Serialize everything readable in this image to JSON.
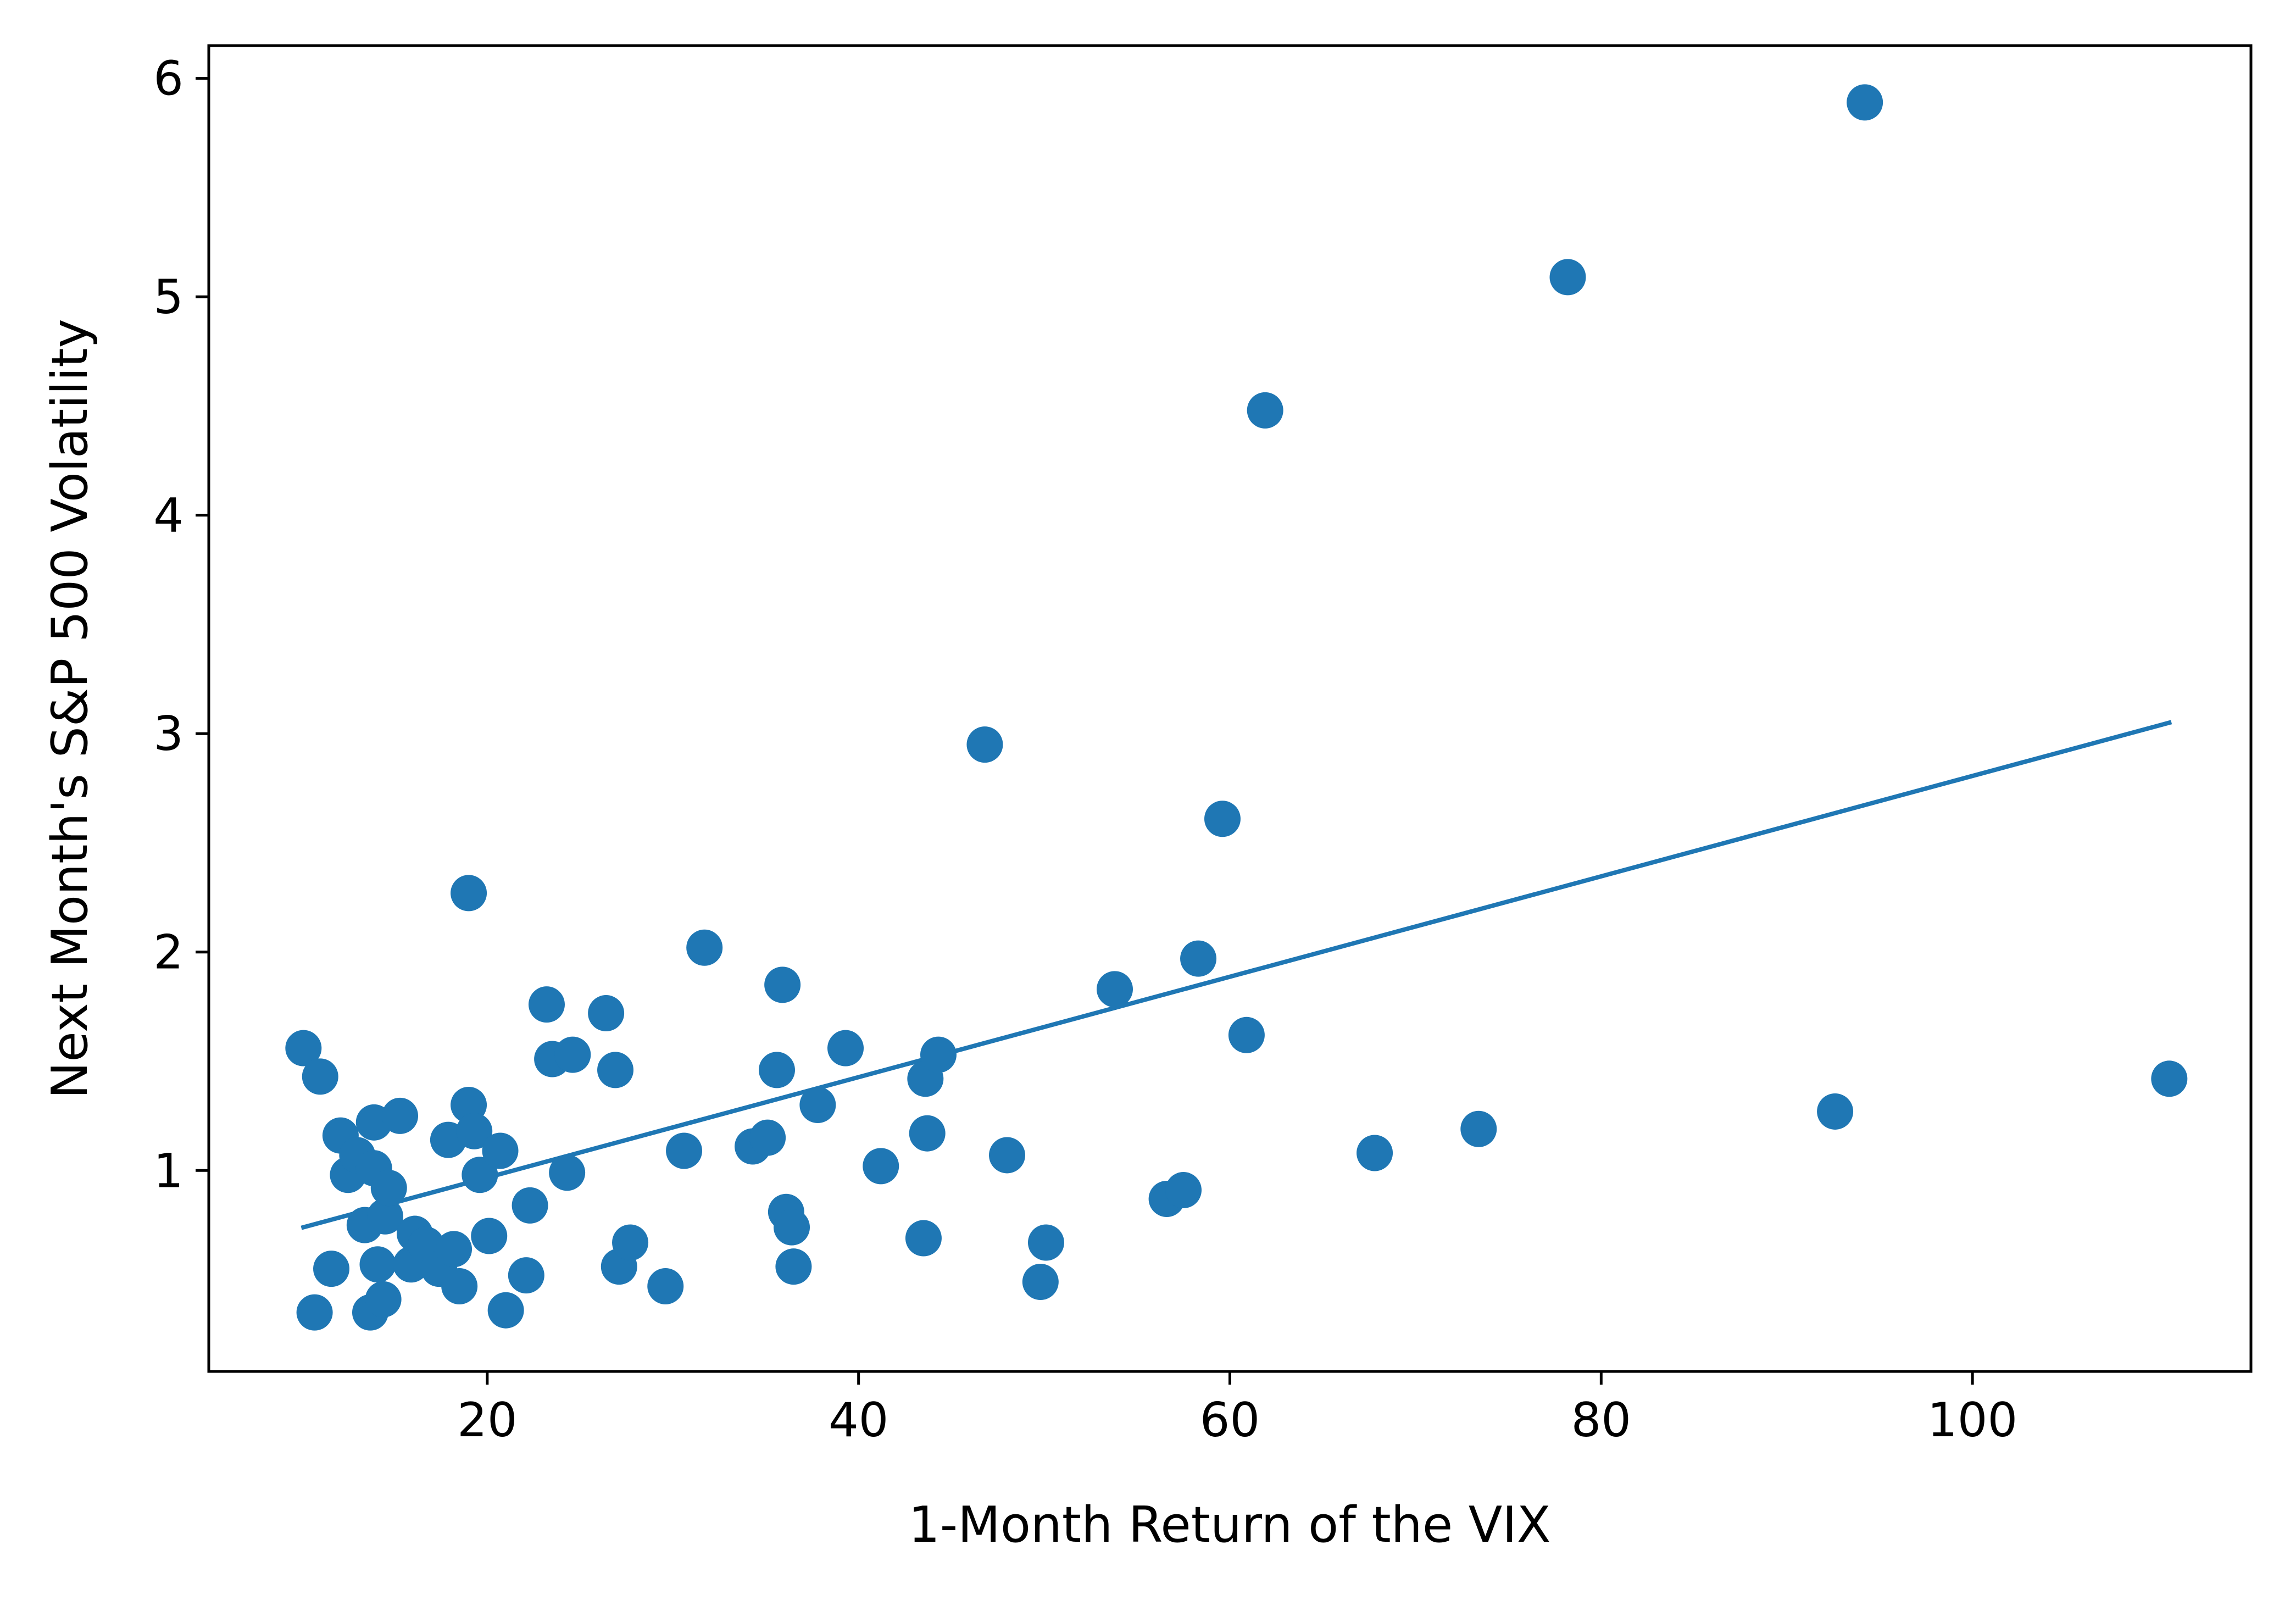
{
  "chart_data": {
    "type": "scatter",
    "title": "",
    "xlabel": "1-Month Return of the VIX",
    "ylabel": "Next Month's S&P 500 Volatility",
    "xlim": [
      5,
      115
    ],
    "ylim": [
      0.08,
      6.15
    ],
    "xticks": [
      20,
      40,
      60,
      80,
      100
    ],
    "yticks": [
      1,
      2,
      3,
      4,
      5,
      6
    ],
    "grid": false,
    "legend": "none",
    "colors": {
      "series": "#1f77b4",
      "axes": "#000000",
      "background": "#ffffff"
    },
    "series": [
      {
        "kind": "points",
        "points": [
          [
            10.1,
            1.56
          ],
          [
            11.0,
            1.43
          ],
          [
            11.6,
            0.55
          ],
          [
            10.7,
            0.35
          ],
          [
            12.1,
            1.16
          ],
          [
            12.5,
            0.98
          ],
          [
            13.0,
            1.07
          ],
          [
            13.4,
            0.75
          ],
          [
            13.9,
            1.01
          ],
          [
            13.9,
            1.22
          ],
          [
            13.7,
            0.35
          ],
          [
            14.1,
            0.57
          ],
          [
            14.4,
            0.41
          ],
          [
            14.5,
            0.79
          ],
          [
            14.7,
            0.92
          ],
          [
            15.3,
            1.25
          ],
          [
            15.9,
            0.57
          ],
          [
            16.1,
            0.71
          ],
          [
            16.7,
            0.66
          ],
          [
            17.4,
            0.55
          ],
          [
            17.9,
            1.14
          ],
          [
            18.2,
            0.64
          ],
          [
            18.5,
            0.47
          ],
          [
            19.0,
            2.27
          ],
          [
            19.0,
            1.3
          ],
          [
            19.3,
            1.18
          ],
          [
            19.6,
            0.98
          ],
          [
            20.1,
            0.7
          ],
          [
            20.7,
            1.09
          ],
          [
            21.0,
            0.36
          ],
          [
            22.1,
            0.52
          ],
          [
            22.3,
            0.84
          ],
          [
            23.2,
            1.76
          ],
          [
            23.5,
            1.51
          ],
          [
            24.3,
            0.99
          ],
          [
            24.6,
            1.53
          ],
          [
            26.4,
            1.72
          ],
          [
            26.9,
            1.46
          ],
          [
            27.1,
            0.56
          ],
          [
            27.7,
            0.67
          ],
          [
            29.6,
            0.47
          ],
          [
            30.6,
            1.09
          ],
          [
            31.7,
            2.02
          ],
          [
            34.3,
            1.11
          ],
          [
            35.1,
            1.15
          ],
          [
            35.6,
            1.46
          ],
          [
            35.9,
            1.85
          ],
          [
            36.1,
            0.81
          ],
          [
            36.4,
            0.74
          ],
          [
            36.5,
            0.56
          ],
          [
            37.8,
            1.3
          ],
          [
            39.3,
            1.56
          ],
          [
            41.2,
            1.02
          ],
          [
            43.5,
            0.69
          ],
          [
            43.6,
            1.42
          ],
          [
            43.7,
            1.17
          ],
          [
            44.3,
            1.53
          ],
          [
            46.8,
            2.95
          ],
          [
            48.0,
            1.07
          ],
          [
            49.8,
            0.49
          ],
          [
            50.1,
            0.67
          ],
          [
            53.8,
            1.83
          ],
          [
            56.6,
            0.87
          ],
          [
            57.5,
            0.91
          ],
          [
            58.3,
            1.97
          ],
          [
            59.6,
            2.61
          ],
          [
            60.9,
            1.62
          ],
          [
            61.9,
            4.48
          ],
          [
            67.8,
            1.08
          ],
          [
            73.4,
            1.19
          ],
          [
            78.2,
            5.09
          ],
          [
            92.6,
            1.27
          ],
          [
            94.2,
            5.89
          ],
          [
            110.6,
            1.42
          ]
        ]
      },
      {
        "kind": "fit-line",
        "line": [
          [
            10.1,
            0.74
          ],
          [
            110.6,
            3.05
          ]
        ]
      }
    ]
  }
}
